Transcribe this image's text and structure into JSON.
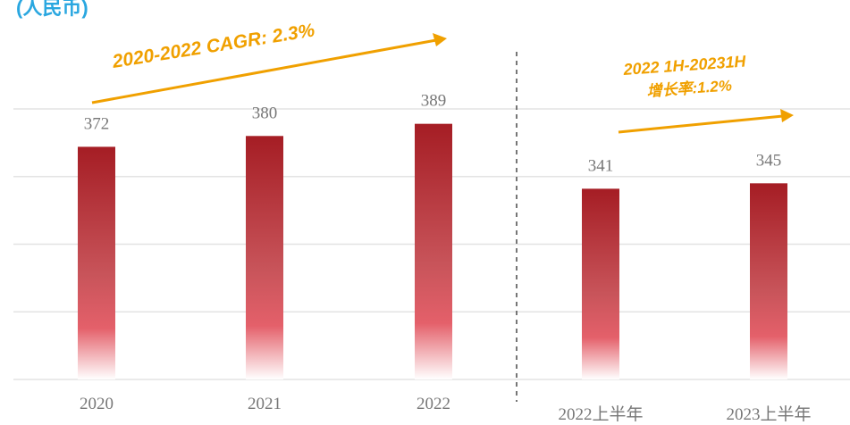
{
  "chart_data": {
    "type": "bar",
    "title": "(人民币)",
    "categories": [
      "2020",
      "2021",
      "2022",
      "2022上半年",
      "2023上半年"
    ],
    "values": [
      372,
      380,
      389,
      341,
      345
    ],
    "color": "#a51d24",
    "ylim": [
      200,
      400
    ],
    "yticks": [
      200,
      250,
      300,
      350,
      400
    ],
    "grid": true,
    "annotations": [
      "2020-2022 CAGR: 2.3%",
      "2022 1H-20231H",
      "增长率:1.2%"
    ]
  }
}
